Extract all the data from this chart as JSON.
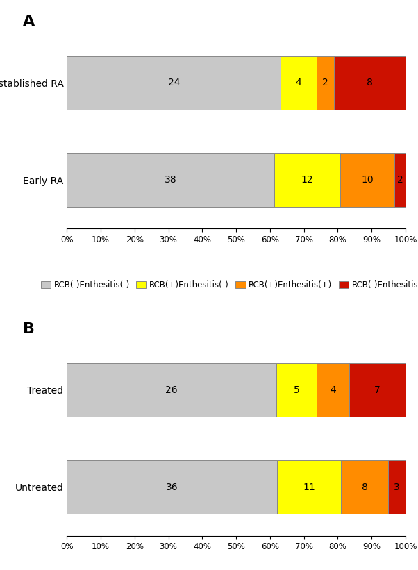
{
  "panel_A": {
    "label": "A",
    "categories": [
      "Early RA",
      "Established RA"
    ],
    "values": [
      [
        38,
        12,
        10,
        2
      ],
      [
        24,
        4,
        2,
        8
      ]
    ]
  },
  "panel_B": {
    "label": "B",
    "categories": [
      "Untreated",
      "Treated"
    ],
    "values": [
      [
        36,
        11,
        8,
        3
      ],
      [
        26,
        5,
        4,
        7
      ]
    ]
  },
  "colors": [
    "#C8C8C8",
    "#FFFF00",
    "#FF8C00",
    "#CC1100"
  ],
  "legend_labels": [
    "RCB(-)Enthesitis(-)",
    "RCB(+)Enthesitis(-)",
    "RCB(+)Enthesitis(+)",
    "RCB(-)Enthesitis(+)"
  ],
  "bar_height": 0.55,
  "bar_edgecolor": "#888888",
  "background_color": "#FFFFFF",
  "label_fontsize": 10,
  "tick_fontsize": 8.5,
  "legend_fontsize": 8.5,
  "panel_label_fontsize": 16,
  "value_fontsize": 10
}
